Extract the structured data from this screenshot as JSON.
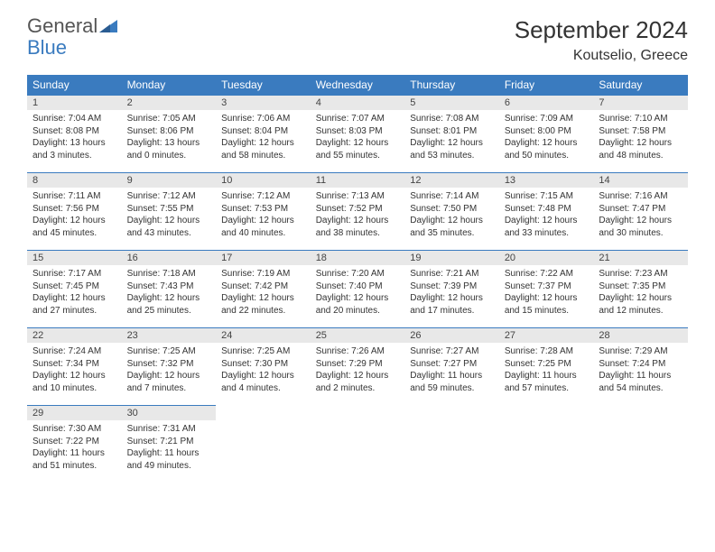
{
  "logo": {
    "text1": "General",
    "text2": "Blue"
  },
  "title": "September 2024",
  "location": "Koutselio, Greece",
  "colors": {
    "header_bg": "#3a7bbf",
    "header_fg": "#ffffff",
    "daynum_bg": "#e8e8e8",
    "rule": "#3a7bbf",
    "text": "#333333"
  },
  "weekdays": [
    "Sunday",
    "Monday",
    "Tuesday",
    "Wednesday",
    "Thursday",
    "Friday",
    "Saturday"
  ],
  "weeks": [
    [
      {
        "n": "1",
        "sr": "Sunrise: 7:04 AM",
        "ss": "Sunset: 8:08 PM",
        "dl": "Daylight: 13 hours and 3 minutes."
      },
      {
        "n": "2",
        "sr": "Sunrise: 7:05 AM",
        "ss": "Sunset: 8:06 PM",
        "dl": "Daylight: 13 hours and 0 minutes."
      },
      {
        "n": "3",
        "sr": "Sunrise: 7:06 AM",
        "ss": "Sunset: 8:04 PM",
        "dl": "Daylight: 12 hours and 58 minutes."
      },
      {
        "n": "4",
        "sr": "Sunrise: 7:07 AM",
        "ss": "Sunset: 8:03 PM",
        "dl": "Daylight: 12 hours and 55 minutes."
      },
      {
        "n": "5",
        "sr": "Sunrise: 7:08 AM",
        "ss": "Sunset: 8:01 PM",
        "dl": "Daylight: 12 hours and 53 minutes."
      },
      {
        "n": "6",
        "sr": "Sunrise: 7:09 AM",
        "ss": "Sunset: 8:00 PM",
        "dl": "Daylight: 12 hours and 50 minutes."
      },
      {
        "n": "7",
        "sr": "Sunrise: 7:10 AM",
        "ss": "Sunset: 7:58 PM",
        "dl": "Daylight: 12 hours and 48 minutes."
      }
    ],
    [
      {
        "n": "8",
        "sr": "Sunrise: 7:11 AM",
        "ss": "Sunset: 7:56 PM",
        "dl": "Daylight: 12 hours and 45 minutes."
      },
      {
        "n": "9",
        "sr": "Sunrise: 7:12 AM",
        "ss": "Sunset: 7:55 PM",
        "dl": "Daylight: 12 hours and 43 minutes."
      },
      {
        "n": "10",
        "sr": "Sunrise: 7:12 AM",
        "ss": "Sunset: 7:53 PM",
        "dl": "Daylight: 12 hours and 40 minutes."
      },
      {
        "n": "11",
        "sr": "Sunrise: 7:13 AM",
        "ss": "Sunset: 7:52 PM",
        "dl": "Daylight: 12 hours and 38 minutes."
      },
      {
        "n": "12",
        "sr": "Sunrise: 7:14 AM",
        "ss": "Sunset: 7:50 PM",
        "dl": "Daylight: 12 hours and 35 minutes."
      },
      {
        "n": "13",
        "sr": "Sunrise: 7:15 AM",
        "ss": "Sunset: 7:48 PM",
        "dl": "Daylight: 12 hours and 33 minutes."
      },
      {
        "n": "14",
        "sr": "Sunrise: 7:16 AM",
        "ss": "Sunset: 7:47 PM",
        "dl": "Daylight: 12 hours and 30 minutes."
      }
    ],
    [
      {
        "n": "15",
        "sr": "Sunrise: 7:17 AM",
        "ss": "Sunset: 7:45 PM",
        "dl": "Daylight: 12 hours and 27 minutes."
      },
      {
        "n": "16",
        "sr": "Sunrise: 7:18 AM",
        "ss": "Sunset: 7:43 PM",
        "dl": "Daylight: 12 hours and 25 minutes."
      },
      {
        "n": "17",
        "sr": "Sunrise: 7:19 AM",
        "ss": "Sunset: 7:42 PM",
        "dl": "Daylight: 12 hours and 22 minutes."
      },
      {
        "n": "18",
        "sr": "Sunrise: 7:20 AM",
        "ss": "Sunset: 7:40 PM",
        "dl": "Daylight: 12 hours and 20 minutes."
      },
      {
        "n": "19",
        "sr": "Sunrise: 7:21 AM",
        "ss": "Sunset: 7:39 PM",
        "dl": "Daylight: 12 hours and 17 minutes."
      },
      {
        "n": "20",
        "sr": "Sunrise: 7:22 AM",
        "ss": "Sunset: 7:37 PM",
        "dl": "Daylight: 12 hours and 15 minutes."
      },
      {
        "n": "21",
        "sr": "Sunrise: 7:23 AM",
        "ss": "Sunset: 7:35 PM",
        "dl": "Daylight: 12 hours and 12 minutes."
      }
    ],
    [
      {
        "n": "22",
        "sr": "Sunrise: 7:24 AM",
        "ss": "Sunset: 7:34 PM",
        "dl": "Daylight: 12 hours and 10 minutes."
      },
      {
        "n": "23",
        "sr": "Sunrise: 7:25 AM",
        "ss": "Sunset: 7:32 PM",
        "dl": "Daylight: 12 hours and 7 minutes."
      },
      {
        "n": "24",
        "sr": "Sunrise: 7:25 AM",
        "ss": "Sunset: 7:30 PM",
        "dl": "Daylight: 12 hours and 4 minutes."
      },
      {
        "n": "25",
        "sr": "Sunrise: 7:26 AM",
        "ss": "Sunset: 7:29 PM",
        "dl": "Daylight: 12 hours and 2 minutes."
      },
      {
        "n": "26",
        "sr": "Sunrise: 7:27 AM",
        "ss": "Sunset: 7:27 PM",
        "dl": "Daylight: 11 hours and 59 minutes."
      },
      {
        "n": "27",
        "sr": "Sunrise: 7:28 AM",
        "ss": "Sunset: 7:25 PM",
        "dl": "Daylight: 11 hours and 57 minutes."
      },
      {
        "n": "28",
        "sr": "Sunrise: 7:29 AM",
        "ss": "Sunset: 7:24 PM",
        "dl": "Daylight: 11 hours and 54 minutes."
      }
    ],
    [
      {
        "n": "29",
        "sr": "Sunrise: 7:30 AM",
        "ss": "Sunset: 7:22 PM",
        "dl": "Daylight: 11 hours and 51 minutes."
      },
      {
        "n": "30",
        "sr": "Sunrise: 7:31 AM",
        "ss": "Sunset: 7:21 PM",
        "dl": "Daylight: 11 hours and 49 minutes."
      },
      null,
      null,
      null,
      null,
      null
    ]
  ]
}
